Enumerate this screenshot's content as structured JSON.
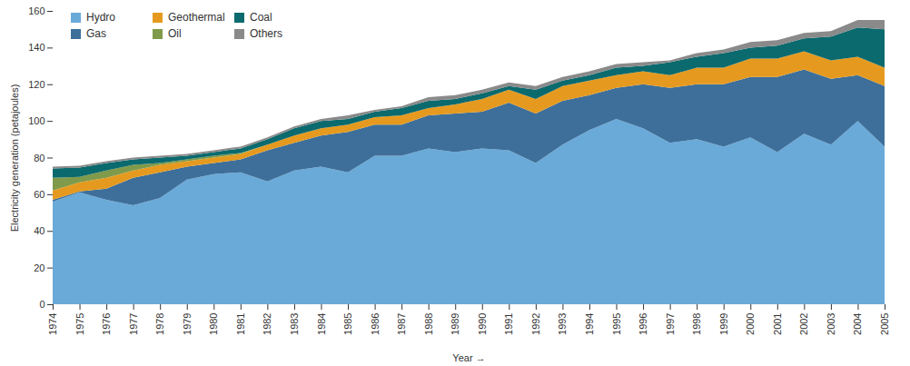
{
  "chart_data": {
    "type": "area",
    "stacked": true,
    "legend": "top-left",
    "grid": false,
    "x_label": "Year",
    "y_label": "Electricity generation (petajoules)",
    "x": [
      1974,
      1975,
      1976,
      1977,
      1978,
      1979,
      1980,
      1981,
      1982,
      1983,
      1984,
      1985,
      1986,
      1987,
      1988,
      1989,
      1990,
      1991,
      1992,
      1993,
      1994,
      1995,
      1996,
      1997,
      1998,
      1999,
      2000,
      2001,
      2002,
      2003,
      2004,
      2005
    ],
    "xlim": [
      1974,
      2005
    ],
    "xticks": [
      1974,
      1975,
      1976,
      1977,
      1978,
      1979,
      1980,
      1981,
      1982,
      1983,
      1984,
      1985,
      1986,
      1987,
      1988,
      1989,
      1990,
      1991,
      1992,
      1993,
      1994,
      1995,
      1996,
      1997,
      1998,
      1999,
      2000,
      2001,
      2002,
      2003,
      2004,
      2005
    ],
    "ylim": [
      0,
      160
    ],
    "yticks": [
      0,
      20,
      40,
      60,
      80,
      100,
      120,
      140,
      160
    ],
    "series": [
      {
        "name": "Hydro",
        "color": "#6aaad8",
        "values": [
          56,
          61,
          57,
          54,
          58,
          68,
          71,
          72,
          67,
          73,
          75,
          72,
          81,
          81,
          85,
          83,
          85,
          84,
          77,
          87,
          95,
          101,
          96,
          88,
          90,
          86,
          91,
          83,
          93,
          87,
          100,
          86
        ]
      },
      {
        "name": "Gas",
        "color": "#3e6f9a",
        "values": [
          1,
          0.5,
          6,
          15,
          14,
          7,
          6,
          7,
          17,
          15,
          17,
          22,
          17,
          17,
          18,
          21,
          20,
          26,
          27,
          24,
          19,
          17,
          24,
          30,
          30,
          34,
          33,
          41,
          35,
          36,
          25,
          33
        ]
      },
      {
        "name": "Geothermal",
        "color": "#e59a1f",
        "values": [
          5,
          5,
          6,
          4,
          4,
          3,
          3,
          3,
          3,
          4,
          4,
          4,
          4,
          5,
          4,
          5,
          7,
          7,
          8,
          8,
          8,
          7,
          7,
          7,
          9,
          9,
          10,
          10,
          10,
          10,
          10,
          10
        ]
      },
      {
        "name": "Oil",
        "color": "#7f9a4a",
        "values": [
          7,
          3,
          4,
          3,
          1,
          1,
          1,
          0.5,
          0,
          0,
          0,
          0,
          0,
          0,
          0,
          0,
          0,
          0,
          0,
          0,
          0,
          0,
          0,
          0,
          0,
          0,
          0,
          0,
          0,
          0,
          0,
          0
        ]
      },
      {
        "name": "Coal",
        "color": "#0b6a6e",
        "values": [
          5,
          5,
          4,
          3,
          3,
          2,
          2,
          2.5,
          3,
          4,
          4,
          3,
          3,
          4,
          4,
          3,
          3,
          2,
          5,
          3,
          3,
          4,
          3,
          7,
          6,
          8,
          6,
          7,
          7,
          13,
          16,
          21
        ]
      },
      {
        "name": "Others",
        "color": "#8a8a8a",
        "values": [
          1,
          1,
          1,
          1,
          1,
          1,
          1,
          1,
          1,
          1,
          1,
          2,
          1,
          1,
          2,
          2,
          2,
          2,
          2,
          2,
          2,
          2,
          2,
          1,
          2,
          2,
          3,
          3,
          3,
          3,
          4,
          5
        ]
      }
    ]
  }
}
